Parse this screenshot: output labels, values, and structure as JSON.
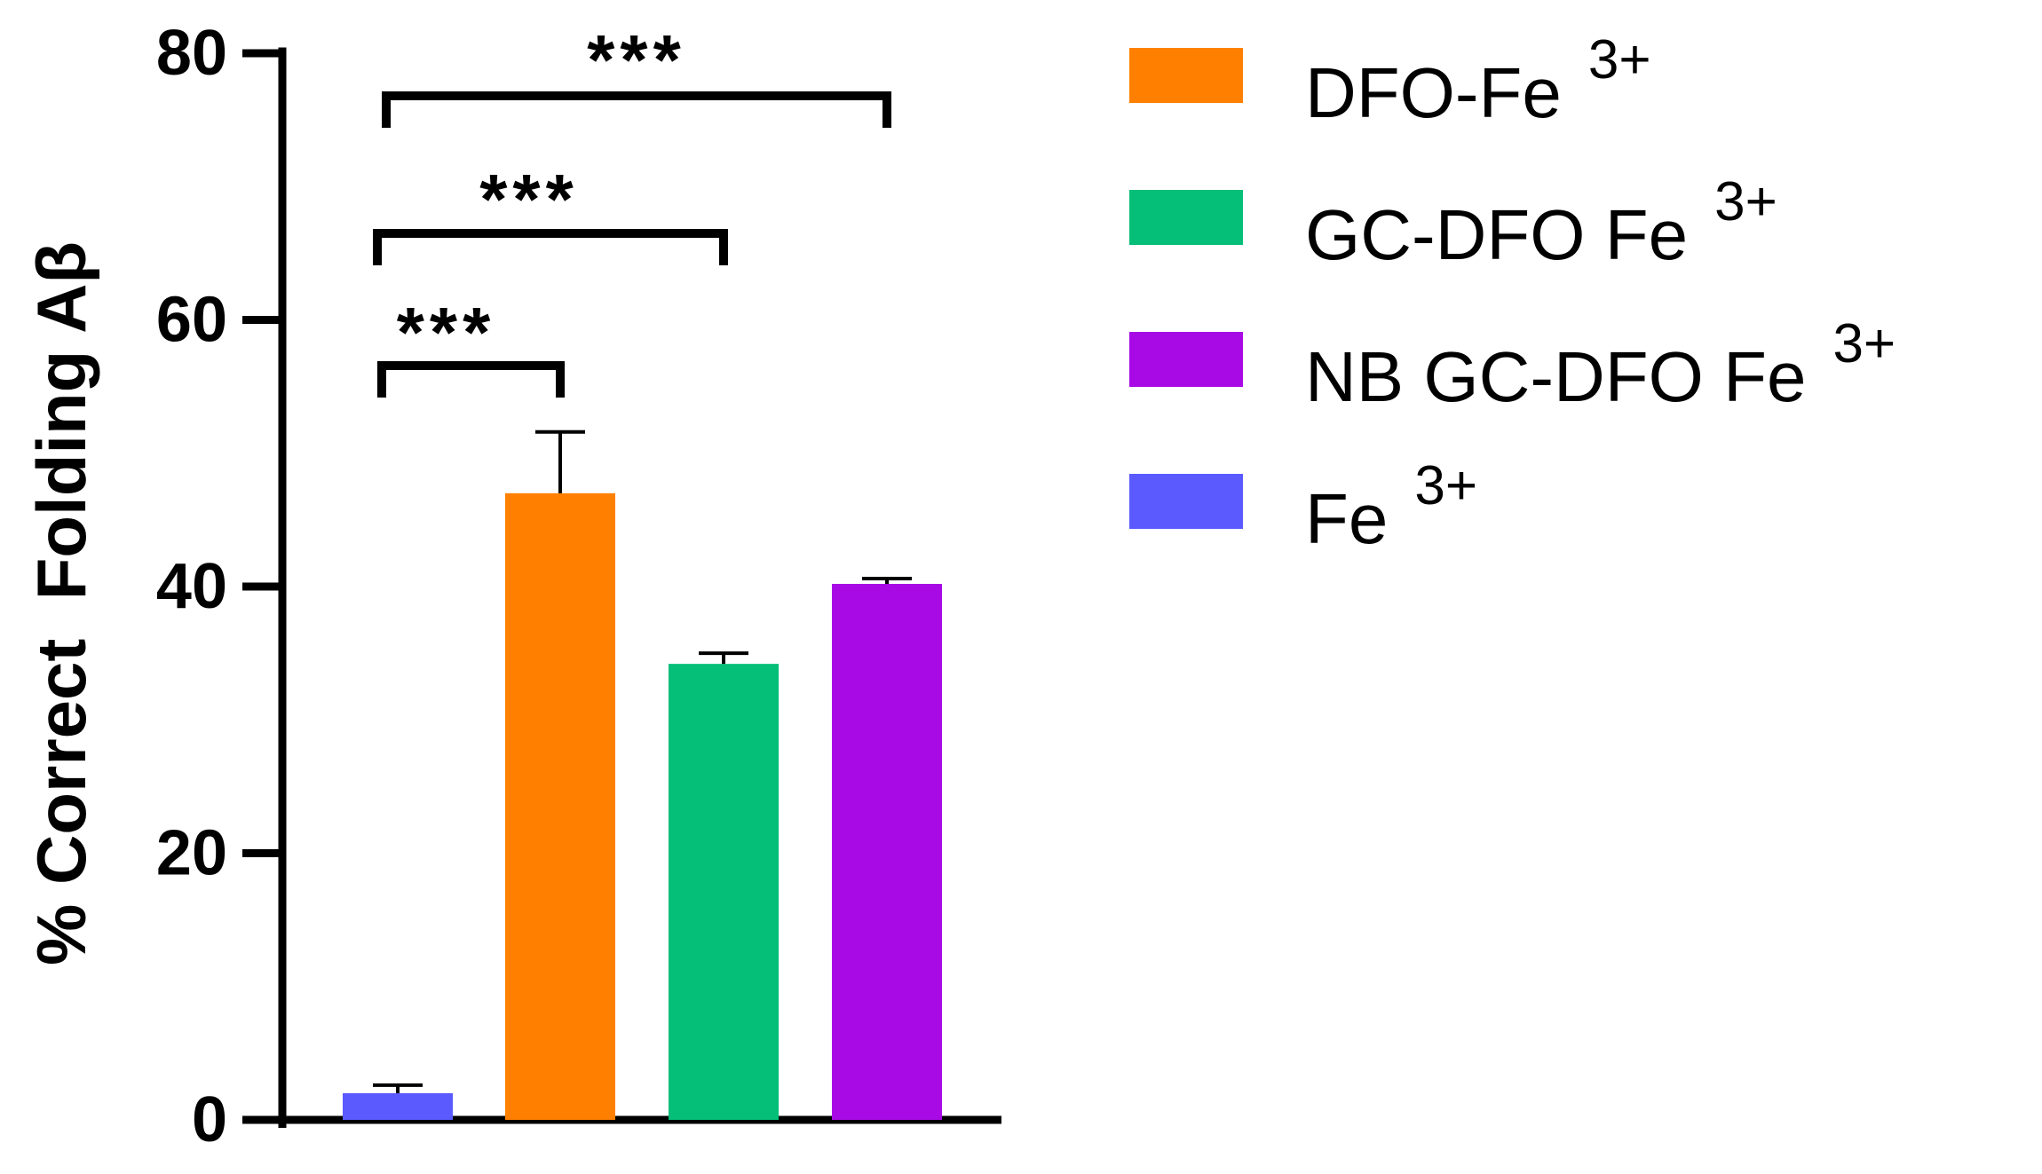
{
  "chart_data": {
    "type": "bar",
    "title": "",
    "xlabel": "",
    "ylabel": "% Correct  Folding Aβ",
    "ylim": [
      0,
      80
    ],
    "yticks": [
      0,
      20,
      40,
      60,
      80
    ],
    "ytick_labels": [
      "0",
      "20",
      "40",
      "60",
      "80"
    ],
    "bars": [
      {
        "name": "Fe 3+",
        "value": 2,
        "error": 0.6,
        "color": "#5a5aff"
      },
      {
        "name": "DFO-Fe 3+",
        "value": 47,
        "error": 4.6,
        "color": "#ff8000"
      },
      {
        "name": "GC-DFO Fe 3+",
        "value": 34.2,
        "error": 0.8,
        "color": "#05be78"
      },
      {
        "name": "NB GC-DFO Fe 3+",
        "value": 40.2,
        "error": 0.4,
        "color": "#a80ae6"
      }
    ],
    "legend": [
      {
        "label": "DFO-Fe",
        "superscript": "3+",
        "color": "#ff8000"
      },
      {
        "label": "GC-DFO Fe",
        "superscript": "3+",
        "color": "#05be78"
      },
      {
        "label": "NB GC-DFO Fe",
        "superscript": "3+",
        "color": "#a80ae6"
      },
      {
        "label": "Fe",
        "superscript": "3+",
        "color": "#5a5aff"
      }
    ],
    "legend_position": "right",
    "significance": [
      {
        "from": 0,
        "to": 1,
        "label": "***"
      },
      {
        "from": 0,
        "to": 2,
        "label": "***"
      },
      {
        "from": 0,
        "to": 3,
        "label": "***"
      }
    ]
  }
}
